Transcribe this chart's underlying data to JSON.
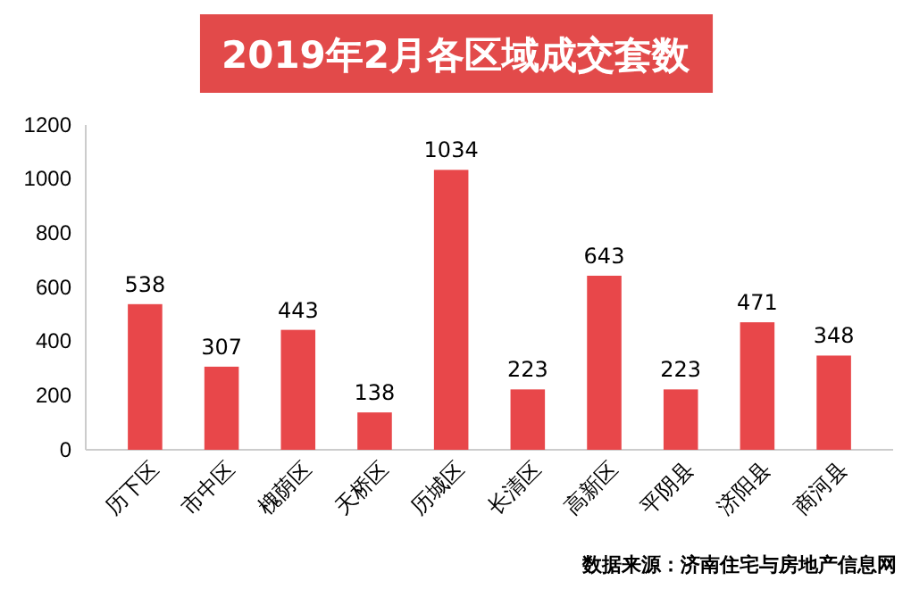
{
  "chart_data": {
    "type": "bar",
    "title": "2019年2月各区域成交套数",
    "categories": [
      "历下区",
      "市中区",
      "槐荫区",
      "天桥区",
      "历城区",
      "长清区",
      "高新区",
      "平阴县",
      "济阳县",
      "商河县"
    ],
    "values": [
      538,
      307,
      443,
      138,
      1034,
      223,
      643,
      223,
      471,
      348
    ],
    "color": "#e8474a",
    "ylim": [
      0,
      1200
    ],
    "yticks": [
      0,
      200,
      400,
      600,
      800,
      1000,
      1200
    ],
    "grid": false,
    "data_labels": true,
    "annotations": [
      "数据来源：济南住宅与房地产信息网"
    ]
  }
}
